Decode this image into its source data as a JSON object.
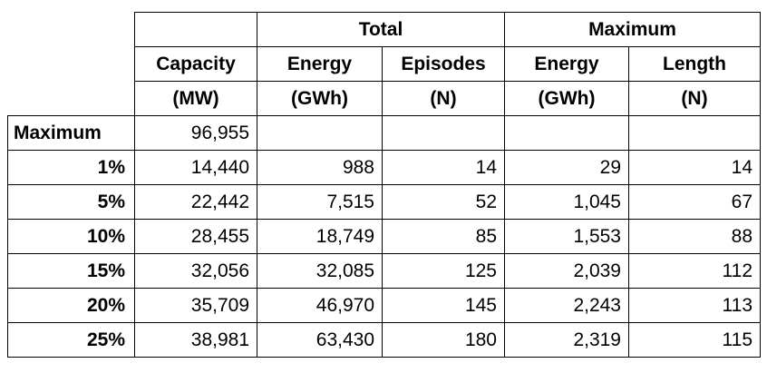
{
  "colors": {
    "background": "#ffffff",
    "border": "#000000",
    "text": "#000000"
  },
  "table": {
    "header": {
      "group_total": "Total",
      "group_maximum": "Maximum",
      "capacity_label": "Capacity",
      "capacity_unit": "(MW)",
      "total_energy_label": "Energy",
      "total_energy_unit": "(GWh)",
      "total_episodes_label": "Episodes",
      "total_episodes_unit": "(N)",
      "max_energy_label": "Energy",
      "max_energy_unit": "(GWh)",
      "max_length_label": "Length",
      "max_length_unit": "(N)"
    },
    "rows": [
      {
        "label": "Maximum",
        "capacity": "96,955",
        "total_energy": "",
        "total_episodes": "",
        "max_energy": "",
        "max_length": ""
      },
      {
        "label": "1%",
        "capacity": "14,440",
        "total_energy": "988",
        "total_episodes": "14",
        "max_energy": "29",
        "max_length": "14"
      },
      {
        "label": "5%",
        "capacity": "22,442",
        "total_energy": "7,515",
        "total_episodes": "52",
        "max_energy": "1,045",
        "max_length": "67"
      },
      {
        "label": "10%",
        "capacity": "28,455",
        "total_energy": "18,749",
        "total_episodes": "85",
        "max_energy": "1,553",
        "max_length": "88"
      },
      {
        "label": "15%",
        "capacity": "32,056",
        "total_energy": "32,085",
        "total_episodes": "125",
        "max_energy": "2,039",
        "max_length": "112"
      },
      {
        "label": "20%",
        "capacity": "35,709",
        "total_energy": "46,970",
        "total_episodes": "145",
        "max_energy": "2,243",
        "max_length": "113"
      },
      {
        "label": "25%",
        "capacity": "38,981",
        "total_energy": "63,430",
        "total_episodes": "180",
        "max_energy": "2,319",
        "max_length": "115"
      }
    ]
  },
  "chart_data": {
    "type": "table",
    "column_groups": [
      "",
      "",
      "Total",
      "Total",
      "Maximum",
      "Maximum"
    ],
    "columns": [
      "",
      "Capacity (MW)",
      "Energy (GWh)",
      "Episodes (N)",
      "Energy (GWh)",
      "Length (N)"
    ],
    "rows": [
      [
        "Maximum",
        96955,
        null,
        null,
        null,
        null
      ],
      [
        "1%",
        14440,
        988,
        14,
        29,
        14
      ],
      [
        "5%",
        22442,
        7515,
        52,
        1045,
        67
      ],
      [
        "10%",
        28455,
        18749,
        85,
        1553,
        88
      ],
      [
        "15%",
        32056,
        32085,
        125,
        2039,
        112
      ],
      [
        "20%",
        35709,
        46970,
        145,
        2243,
        113
      ],
      [
        "25%",
        38981,
        63430,
        180,
        2319,
        115
      ]
    ]
  }
}
